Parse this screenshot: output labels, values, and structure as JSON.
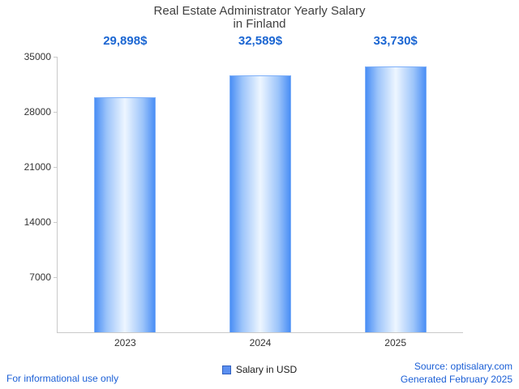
{
  "title": {
    "line1": "Real Estate Administrator Yearly Salary",
    "line2": "in Finland"
  },
  "chart_data": {
    "type": "bar",
    "title": "Real Estate Administrator Yearly Salary in Finland",
    "categories": [
      "2023",
      "2024",
      "2025"
    ],
    "values": [
      29898,
      32589,
      33730
    ],
    "value_labels": [
      "29,898$",
      "32,589$",
      "33,730$"
    ],
    "series_name": "Salary in USD",
    "xlabel": "",
    "ylabel": "",
    "ylim": [
      0,
      35000
    ],
    "yticks": [
      7000,
      14000,
      21000,
      28000,
      35000
    ],
    "grid": false,
    "legend_position": "bottom"
  },
  "legend": {
    "label": "Salary in USD"
  },
  "footer": {
    "left": "For informational use only",
    "source": "Source: optisalary.com",
    "generated": "Generated February 2025"
  },
  "colors": {
    "accent_blue": "#1b66d2",
    "bar_edge_blue": "#4a8ef5",
    "bar_center": "#eef6ff",
    "axis_gray": "#c9c9c9",
    "title_gray": "#404040"
  }
}
